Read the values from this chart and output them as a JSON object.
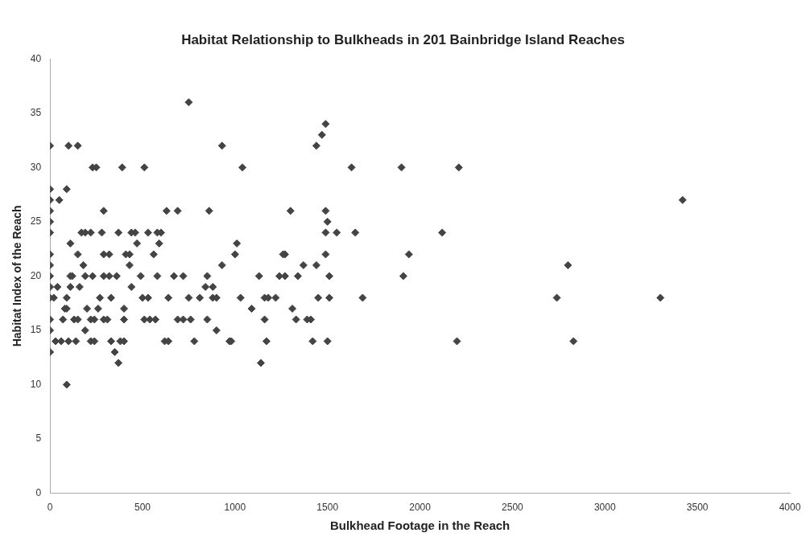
{
  "chart_data": {
    "type": "scatter",
    "title": "Habitat Relationship to Bulkheads in 201 Bainbridge Island Reaches",
    "xlabel": "Bulkhead Footage in the Reach",
    "ylabel": "Habitat Index of the Reach",
    "xlim": [
      0,
      4000
    ],
    "xticks": [
      0,
      500,
      1000,
      1500,
      2000,
      2500,
      3000,
      3500,
      4000
    ],
    "ylim": [
      0,
      40
    ],
    "yticks": [
      0,
      5,
      10,
      15,
      20,
      25,
      30,
      35,
      40
    ],
    "grid": false,
    "legend": false,
    "marker": "diamond",
    "series": [
      {
        "color": "#444444",
        "x": [
          750,
          1490,
          1470,
          0,
          100,
          150,
          930,
          1440,
          230,
          250,
          390,
          510,
          1040,
          1630,
          1900,
          2210,
          0,
          90,
          0,
          50,
          3420,
          0,
          290,
          630,
          690,
          860,
          1300,
          1490,
          0,
          1500,
          0,
          170,
          190,
          220,
          280,
          370,
          440,
          460,
          530,
          580,
          600,
          1490,
          1550,
          1650,
          2120,
          110,
          470,
          590,
          1010,
          0,
          150,
          290,
          320,
          410,
          430,
          560,
          1000,
          1260,
          1270,
          1490,
          1940,
          0,
          180,
          430,
          930,
          1370,
          1440,
          2800,
          0,
          110,
          120,
          190,
          230,
          290,
          320,
          360,
          490,
          580,
          670,
          720,
          850,
          1130,
          1240,
          1270,
          1340,
          1510,
          1910,
          0,
          40,
          110,
          160,
          440,
          840,
          880,
          0,
          20,
          90,
          270,
          330,
          500,
          530,
          640,
          750,
          810,
          880,
          900,
          1030,
          1160,
          1180,
          1220,
          1450,
          1510,
          1690,
          2740,
          3300,
          80,
          90,
          200,
          260,
          400,
          1090,
          1310,
          0,
          70,
          130,
          150,
          220,
          240,
          290,
          310,
          400,
          510,
          540,
          570,
          690,
          720,
          760,
          850,
          1160,
          1330,
          1390,
          1410,
          0,
          190,
          900,
          30,
          60,
          100,
          140,
          220,
          240,
          330,
          380,
          400,
          620,
          640,
          780,
          970,
          980,
          1170,
          1420,
          1500,
          2200,
          2830,
          0,
          350,
          370,
          1140,
          90
        ],
        "values": [
          36,
          34,
          33,
          32,
          32,
          32,
          32,
          32,
          30,
          30,
          30,
          30,
          30,
          30,
          30,
          30,
          28,
          28,
          27,
          27,
          27,
          26,
          26,
          26,
          26,
          26,
          26,
          26,
          25,
          25,
          24,
          24,
          24,
          24,
          24,
          24,
          24,
          24,
          24,
          24,
          24,
          24,
          24,
          24,
          24,
          23,
          23,
          23,
          23,
          22,
          22,
          22,
          22,
          22,
          22,
          22,
          22,
          22,
          22,
          22,
          22,
          21,
          21,
          21,
          21,
          21,
          21,
          21,
          20,
          20,
          20,
          20,
          20,
          20,
          20,
          20,
          20,
          20,
          20,
          20,
          20,
          20,
          20,
          20,
          20,
          20,
          20,
          19,
          19,
          19,
          19,
          19,
          19,
          19,
          18,
          18,
          18,
          18,
          18,
          18,
          18,
          18,
          18,
          18,
          18,
          18,
          18,
          18,
          18,
          18,
          18,
          18,
          18,
          18,
          18,
          17,
          17,
          17,
          17,
          17,
          17,
          17,
          16,
          16,
          16,
          16,
          16,
          16,
          16,
          16,
          16,
          16,
          16,
          16,
          16,
          16,
          16,
          16,
          16,
          16,
          16,
          16,
          15,
          15,
          15,
          14,
          14,
          14,
          14,
          14,
          14,
          14,
          14,
          14,
          14,
          14,
          14,
          14,
          14,
          14,
          14,
          14,
          14,
          14,
          13,
          13,
          12,
          12,
          10
        ]
      }
    ]
  }
}
